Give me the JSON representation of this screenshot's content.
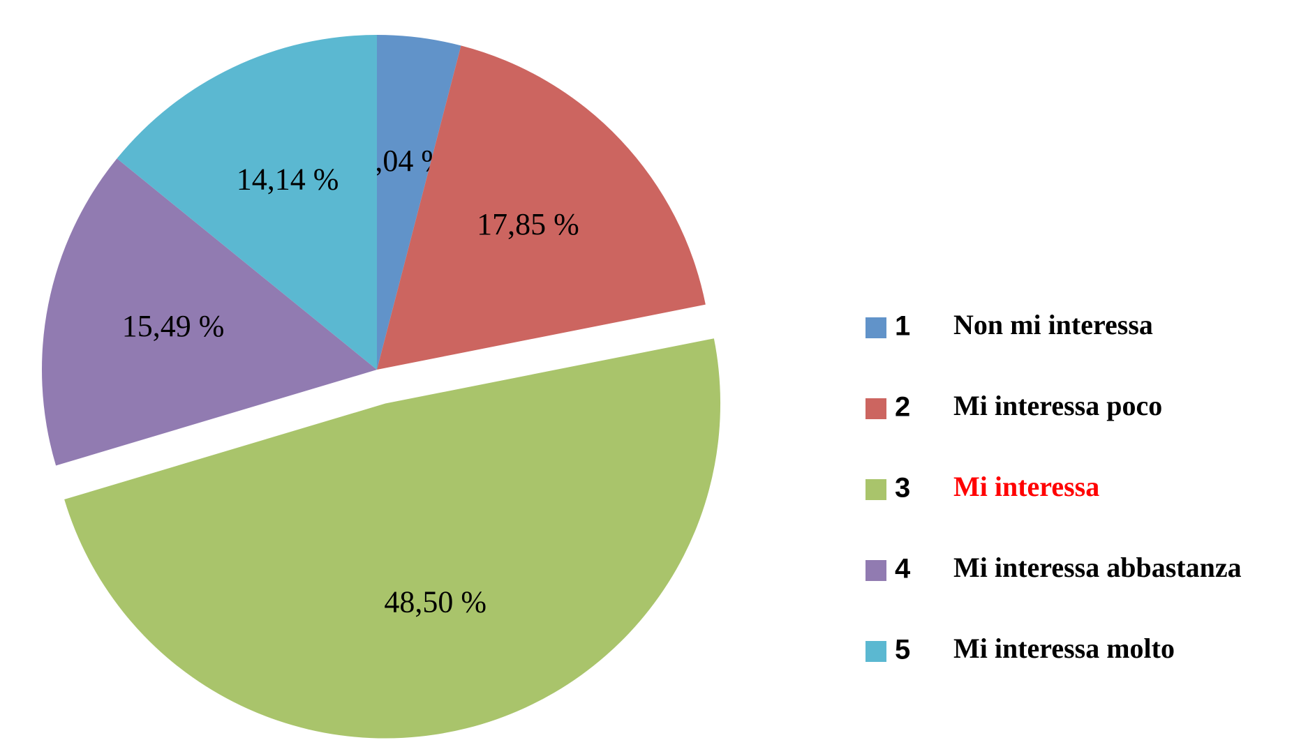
{
  "chart_data": {
    "type": "pie",
    "categories": [
      "Non mi interessa",
      "Mi interessa poco",
      "Mi interessa",
      "Mi interessa abbastanza",
      "Mi interessa molto"
    ],
    "category_codes": [
      "1",
      "2",
      "3",
      "4",
      "5"
    ],
    "values": [
      4.04,
      17.85,
      48.5,
      15.49,
      14.14
    ],
    "value_labels": [
      "4,04 %",
      "17,85 %",
      "48,50 %",
      "15,49 %",
      "14,14 %"
    ],
    "colors": [
      "#6193c9",
      "#cc6560",
      "#a9c46b",
      "#917bb1",
      "#5bb8d1"
    ],
    "legend_text_colors": [
      "#000000",
      "#000000",
      "#ff0000",
      "#000000",
      "#000000"
    ],
    "explode": [
      false,
      false,
      true,
      false,
      false
    ],
    "legend": "right"
  }
}
